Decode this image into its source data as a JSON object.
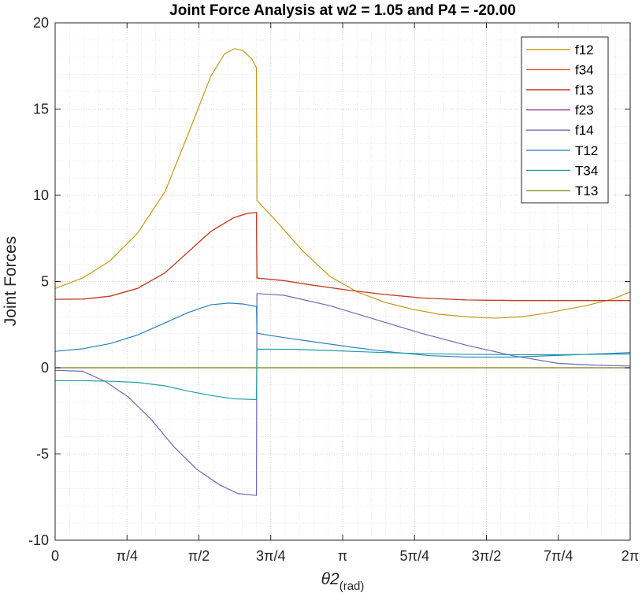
{
  "chart_data": {
    "type": "line",
    "title": "Joint Force Analysis at w2 = 1.05 and P4 = -20.00",
    "xlabel": "θ2",
    "xlabel_sub": "(rad)",
    "ylabel": "Joint Forces",
    "xlim": [
      0,
      6.2832
    ],
    "ylim": [
      -10,
      20
    ],
    "x_ticks": [
      {
        "value": 0,
        "label": "0"
      },
      {
        "value": 0.7854,
        "label": "π/4"
      },
      {
        "value": 1.5708,
        "label": "π/2"
      },
      {
        "value": 2.3562,
        "label": "3π/4"
      },
      {
        "value": 3.1416,
        "label": "π"
      },
      {
        "value": 3.927,
        "label": "5π/4"
      },
      {
        "value": 4.7124,
        "label": "3π/2"
      },
      {
        "value": 5.4978,
        "label": "7π/4"
      },
      {
        "value": 6.2832,
        "label": "2π"
      }
    ],
    "y_ticks": [
      {
        "value": -10,
        "label": "-10"
      },
      {
        "value": -5,
        "label": "-5"
      },
      {
        "value": 0,
        "label": "0"
      },
      {
        "value": 5,
        "label": "5"
      },
      {
        "value": 10,
        "label": "10"
      },
      {
        "value": 15,
        "label": "15"
      },
      {
        "value": 20,
        "label": "20"
      }
    ],
    "grid": true,
    "minor_grid": true,
    "legend_position": "top-right",
    "series": [
      {
        "name": "f12",
        "color": "#c49a13",
        "points": [
          [
            0,
            4.6
          ],
          [
            0.3,
            5.2
          ],
          [
            0.6,
            6.2
          ],
          [
            0.9,
            7.8
          ],
          [
            1.2,
            10.2
          ],
          [
            1.45,
            13.5
          ],
          [
            1.7,
            16.9
          ],
          [
            1.85,
            18.2
          ],
          [
            1.96,
            18.5
          ],
          [
            2.05,
            18.4
          ],
          [
            2.15,
            17.9
          ],
          [
            2.2,
            17.4
          ],
          [
            2.205,
            9.7
          ],
          [
            2.4,
            8.6
          ],
          [
            2.7,
            6.8
          ],
          [
            3.0,
            5.3
          ],
          [
            3.3,
            4.4
          ],
          [
            3.6,
            3.8
          ],
          [
            3.9,
            3.4
          ],
          [
            4.2,
            3.1
          ],
          [
            4.5,
            2.95
          ],
          [
            4.8,
            2.88
          ],
          [
            5.1,
            2.95
          ],
          [
            5.4,
            3.2
          ],
          [
            5.8,
            3.6
          ],
          [
            6.1,
            4.0
          ],
          [
            6.2832,
            4.4
          ]
        ]
      },
      {
        "name": "f34",
        "color": "#d45a20",
        "points": [
          [
            0,
            3.97
          ],
          [
            0.3,
            3.98
          ],
          [
            0.6,
            4.15
          ],
          [
            0.9,
            4.6
          ],
          [
            1.2,
            5.5
          ],
          [
            1.45,
            6.7
          ],
          [
            1.7,
            7.9
          ],
          [
            1.95,
            8.7
          ],
          [
            2.1,
            8.95
          ],
          [
            2.2,
            9.0
          ],
          [
            2.205,
            5.2
          ],
          [
            2.5,
            5.05
          ],
          [
            2.8,
            4.8
          ],
          [
            3.2,
            4.5
          ],
          [
            3.6,
            4.25
          ],
          [
            4.0,
            4.05
          ],
          [
            4.5,
            3.93
          ],
          [
            5.0,
            3.9
          ],
          [
            5.5,
            3.9
          ],
          [
            6.2832,
            3.9
          ]
        ]
      },
      {
        "name": "f13",
        "color": "#c63a2a",
        "points": [
          [
            0,
            3.97
          ],
          [
            0.3,
            3.98
          ],
          [
            0.6,
            4.15
          ],
          [
            0.9,
            4.6
          ],
          [
            1.2,
            5.5
          ],
          [
            1.45,
            6.7
          ],
          [
            1.7,
            7.9
          ],
          [
            1.95,
            8.7
          ],
          [
            2.1,
            8.95
          ],
          [
            2.2,
            9.0
          ],
          [
            2.205,
            5.2
          ],
          [
            2.5,
            5.05
          ],
          [
            2.8,
            4.8
          ],
          [
            3.2,
            4.5
          ],
          [
            3.6,
            4.25
          ],
          [
            4.0,
            4.05
          ],
          [
            4.5,
            3.93
          ],
          [
            5.0,
            3.9
          ],
          [
            5.5,
            3.9
          ],
          [
            6.2832,
            3.9
          ]
        ]
      },
      {
        "name": "f23",
        "color": "#8c3a8c",
        "points": [
          [
            0,
            0
          ],
          [
            6.2832,
            0
          ]
        ]
      },
      {
        "name": "f14",
        "color": "#6b6bb5",
        "points": [
          [
            0,
            -0.15
          ],
          [
            0.3,
            -0.2
          ],
          [
            0.55,
            -0.8
          ],
          [
            0.8,
            -1.7
          ],
          [
            1.05,
            -3.0
          ],
          [
            1.3,
            -4.6
          ],
          [
            1.55,
            -5.9
          ],
          [
            1.8,
            -6.8
          ],
          [
            2.0,
            -7.3
          ],
          [
            2.2,
            -7.4
          ],
          [
            2.205,
            4.3
          ],
          [
            2.5,
            4.2
          ],
          [
            3.0,
            3.6
          ],
          [
            3.5,
            2.8
          ],
          [
            4.0,
            2.0
          ],
          [
            4.5,
            1.3
          ],
          [
            5.0,
            0.7
          ],
          [
            5.5,
            0.25
          ],
          [
            5.9,
            0.15
          ],
          [
            6.2832,
            0.1
          ]
        ]
      },
      {
        "name": "T12",
        "color": "#2a7fc0",
        "points": [
          [
            0,
            0.95
          ],
          [
            0.3,
            1.1
          ],
          [
            0.6,
            1.4
          ],
          [
            0.9,
            1.9
          ],
          [
            1.2,
            2.6
          ],
          [
            1.45,
            3.2
          ],
          [
            1.7,
            3.65
          ],
          [
            1.9,
            3.75
          ],
          [
            2.05,
            3.7
          ],
          [
            2.2,
            3.55
          ],
          [
            2.205,
            2.0
          ],
          [
            2.5,
            1.75
          ],
          [
            2.9,
            1.45
          ],
          [
            3.3,
            1.15
          ],
          [
            3.7,
            0.9
          ],
          [
            4.1,
            0.7
          ],
          [
            4.5,
            0.62
          ],
          [
            5.0,
            0.62
          ],
          [
            5.5,
            0.72
          ],
          [
            6.0,
            0.82
          ],
          [
            6.2832,
            0.88
          ]
        ]
      },
      {
        "name": "T34",
        "color": "#1fa0a8",
        "points": [
          [
            0,
            -0.75
          ],
          [
            0.3,
            -0.75
          ],
          [
            0.6,
            -0.78
          ],
          [
            0.9,
            -0.85
          ],
          [
            1.2,
            -1.05
          ],
          [
            1.45,
            -1.35
          ],
          [
            1.7,
            -1.6
          ],
          [
            1.95,
            -1.8
          ],
          [
            2.2,
            -1.85
          ],
          [
            2.205,
            1.08
          ],
          [
            2.6,
            1.07
          ],
          [
            3.0,
            1.0
          ],
          [
            3.5,
            0.9
          ],
          [
            4.0,
            0.82
          ],
          [
            4.5,
            0.78
          ],
          [
            5.0,
            0.76
          ],
          [
            5.5,
            0.76
          ],
          [
            6.0,
            0.78
          ],
          [
            6.2832,
            0.8
          ]
        ]
      },
      {
        "name": "T13",
        "color": "#8c9a2a",
        "points": [
          [
            0,
            0
          ],
          [
            6.2832,
            0
          ]
        ]
      }
    ]
  }
}
